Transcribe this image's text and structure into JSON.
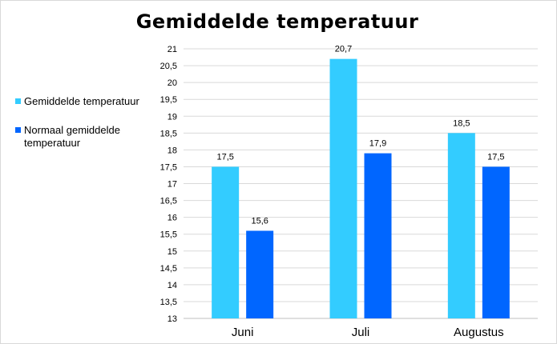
{
  "chart_data": {
    "type": "bar",
    "title": "Gemiddelde temperatuur",
    "categories": [
      "Juni",
      "Juli",
      "Augustus"
    ],
    "series": [
      {
        "name": "Gemiddelde temperatuur",
        "color": "#33CCFF",
        "values": [
          17.5,
          20.7,
          18.5
        ],
        "labels": [
          "17,5",
          "20,7",
          "18,5"
        ]
      },
      {
        "name": "Normaal gemiddelde temperatuur",
        "color": "#0066FF",
        "values": [
          15.6,
          17.9,
          17.5
        ],
        "labels": [
          "15,6",
          "17,9",
          "17,5"
        ]
      }
    ],
    "ylim": [
      13,
      21
    ],
    "yticks": [
      {
        "value": 13,
        "label": "13"
      },
      {
        "value": 13.5,
        "label": "13,5"
      },
      {
        "value": 14,
        "label": "14"
      },
      {
        "value": 14.5,
        "label": "14,5"
      },
      {
        "value": 15,
        "label": "15"
      },
      {
        "value": 15.5,
        "label": "15,5"
      },
      {
        "value": 16,
        "label": "16"
      },
      {
        "value": 16.5,
        "label": "16,5"
      },
      {
        "value": 17,
        "label": "17"
      },
      {
        "value": 17.5,
        "label": "17,5"
      },
      {
        "value": 18,
        "label": "18"
      },
      {
        "value": 18.5,
        "label": "18,5"
      },
      {
        "value": 19,
        "label": "19"
      },
      {
        "value": 19.5,
        "label": "19,5"
      },
      {
        "value": 20,
        "label": "20"
      },
      {
        "value": 20.5,
        "label": "20,5"
      },
      {
        "value": 21,
        "label": "21"
      }
    ],
    "grid": true,
    "legend_position": "left"
  }
}
